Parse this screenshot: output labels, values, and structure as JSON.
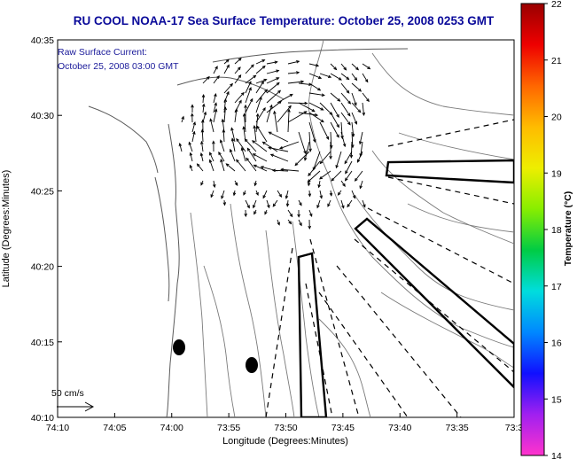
{
  "title": "RU COOL  NOAA-17  Sea Surface Temperature:  October 25, 2008 0253 GMT",
  "current_note": {
    "line1": "Raw Surface Current:",
    "line2": "October 25, 2008 03:00 GMT"
  },
  "axes": {
    "xlabel": "Longitude (Degrees:Minutes)",
    "ylabel": "Latitude (Degrees:Minutes)",
    "x_ticks": [
      "74:10",
      "74:05",
      "74:00",
      "73:55",
      "73:50",
      "73:45",
      "73:40",
      "73:35",
      "73:3"
    ],
    "y_ticks": [
      "40:35",
      "40:30",
      "40:25",
      "40:20",
      "40:15",
      "40:10"
    ]
  },
  "scale_label": "50 cm/s",
  "colorbar": {
    "label": "Temperature (°C)",
    "ticks": [
      "22",
      "21",
      "20",
      "19",
      "18",
      "17",
      "16",
      "15",
      "14"
    ],
    "colors": [
      "#ff33cc",
      "#a020f0",
      "#1010ff",
      "#0088ff",
      "#00dddd",
      "#00cc44",
      "#88ee00",
      "#eeee00",
      "#ffbb00",
      "#ff6600",
      "#ee0000",
      "#990000"
    ]
  },
  "colors": {
    "title": "#0a0a9a",
    "land_contour": "#777777",
    "vectors": "#000000"
  },
  "icons": [
    "current-vector-arrow-icon",
    "scale-arrow-icon"
  ]
}
